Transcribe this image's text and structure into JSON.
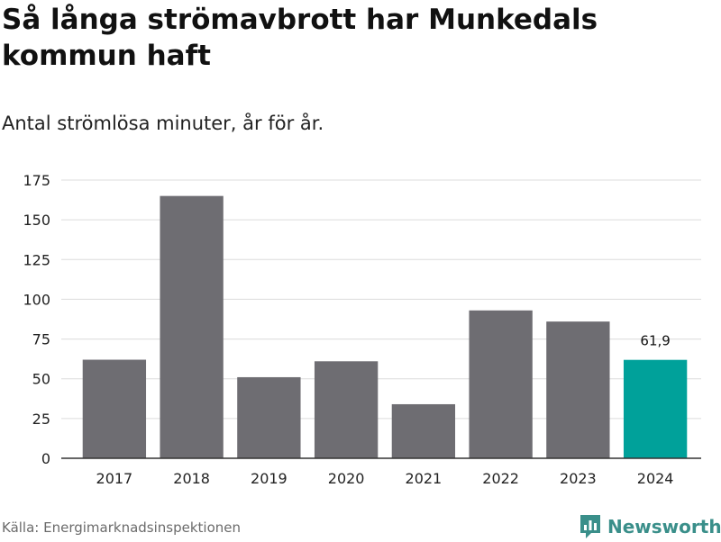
{
  "header": {
    "title": "Så långa strömavbrott har Munkedals kommun haft",
    "subtitle": "Antal strömlösa minuter, år för år."
  },
  "footer": {
    "source": "Källa: Energimarknadsinspektionen",
    "brand": "Newsworthy"
  },
  "colors": {
    "bar": "#6e6d72",
    "highlight": "#00a19a",
    "grid": "#dcdcdc",
    "brand": "#3a8f8a"
  },
  "chart_data": {
    "type": "bar",
    "title": "Så långa strömavbrott har Munkedals kommun haft",
    "subtitle": "Antal strömlösa minuter, år för år.",
    "xlabel": "",
    "ylabel": "",
    "categories": [
      "2017",
      "2018",
      "2019",
      "2020",
      "2021",
      "2022",
      "2023",
      "2024"
    ],
    "values": [
      62,
      165,
      51,
      61,
      34,
      93,
      86,
      61.9
    ],
    "highlight_index": 7,
    "data_labels": [
      {
        "index": 7,
        "text": "61,9"
      }
    ],
    "ylim": [
      0,
      175
    ],
    "yticks": [
      0,
      25,
      50,
      75,
      100,
      125,
      150,
      175
    ],
    "grid": true
  }
}
